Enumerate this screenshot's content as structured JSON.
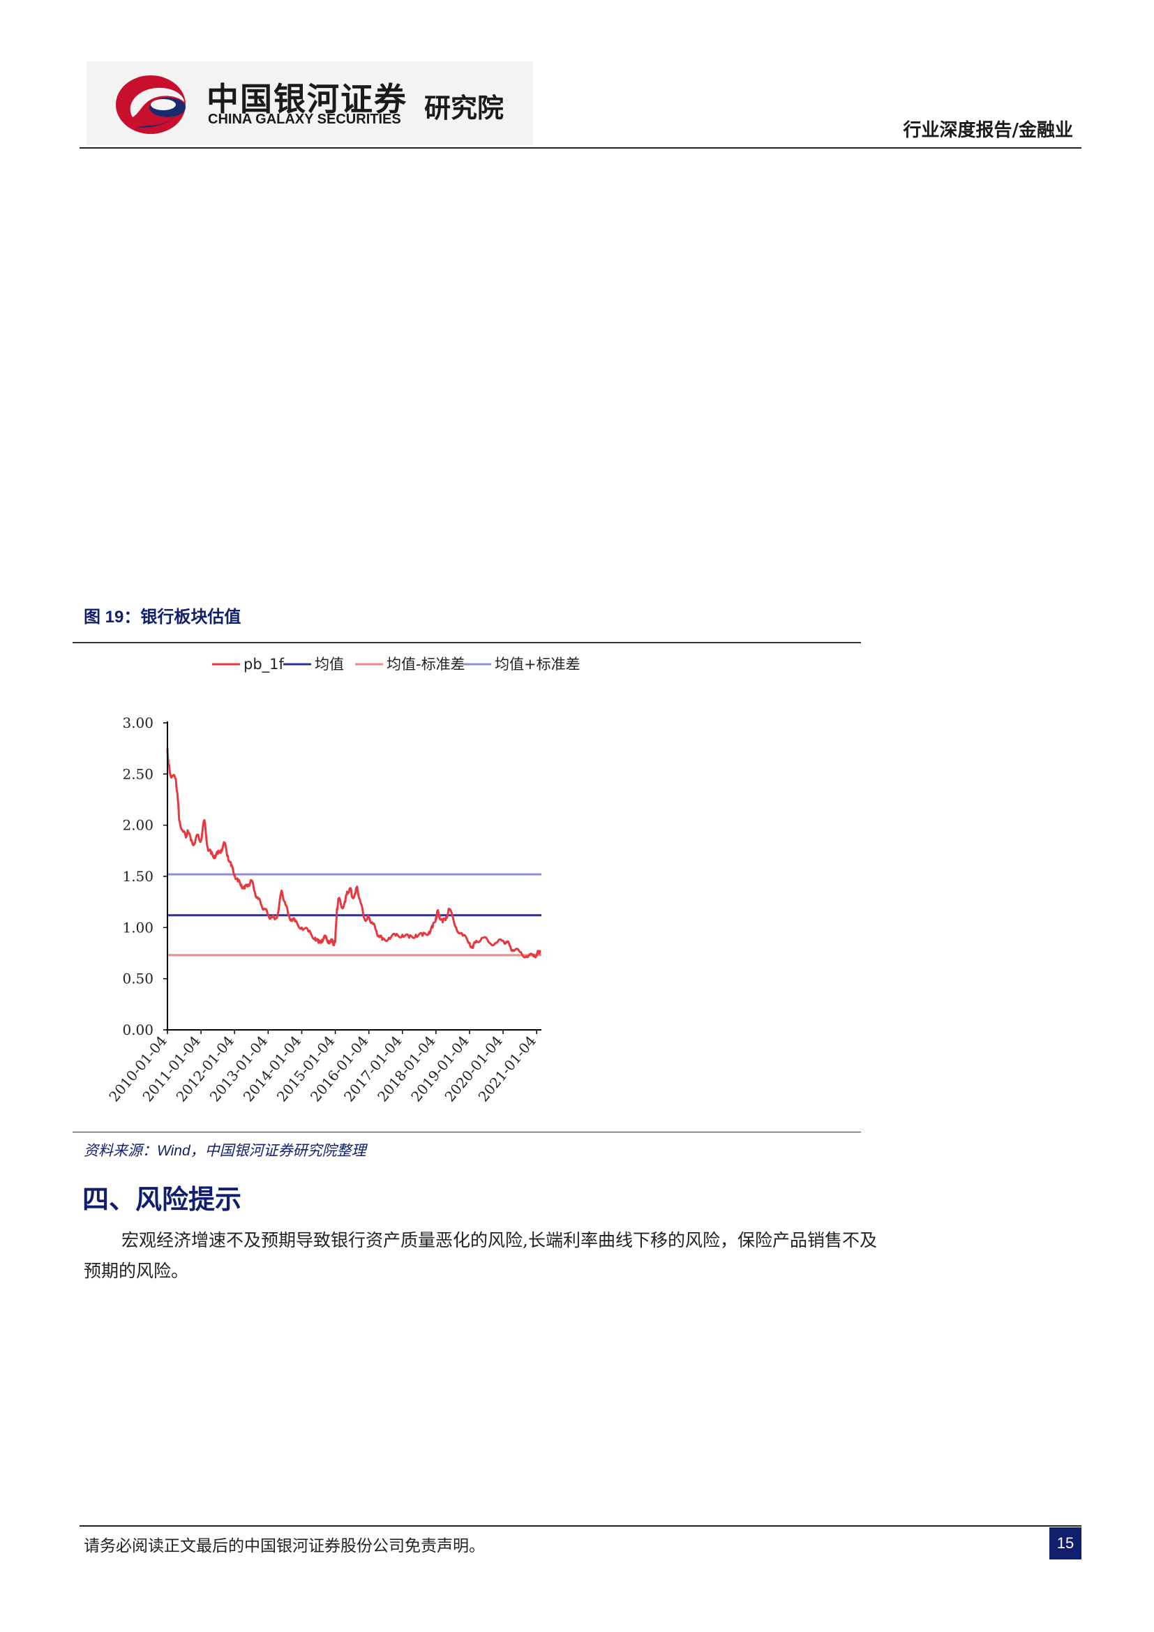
{
  "header": {
    "logo_cn": "中国银河证券",
    "logo_en": "CHINA GALAXY SECURITIES",
    "logo_institute": "研究院",
    "report_type": "行业深度报告/金融业"
  },
  "figure": {
    "title": "图 19：银行板块估值",
    "source": "资料来源：Wind，中国银河证券研究院整理"
  },
  "chart_data": {
    "type": "line",
    "x_ticks": [
      "2010-01-04",
      "2011-01-04",
      "2012-01-04",
      "2013-01-04",
      "2014-01-04",
      "2015-01-04",
      "2016-01-04",
      "2017-01-04",
      "2018-01-04",
      "2019-01-04",
      "2020-01-04",
      "2021-01-04"
    ],
    "y_ticks": [
      "0.00",
      "0.50",
      "1.00",
      "1.50",
      "2.00",
      "2.50",
      "3.00"
    ],
    "ylim": [
      0,
      3
    ],
    "xlim": [
      2010.0,
      2021.1
    ],
    "legend_position": "top",
    "series": [
      {
        "name": "pb_1f",
        "color": "#e8383d",
        "x": [
          2010.0,
          2010.03,
          2010.08,
          2010.15,
          2010.25,
          2010.3,
          2010.35,
          2010.45,
          2010.55,
          2010.6,
          2010.7,
          2010.8,
          2010.9,
          2011.0,
          2011.1,
          2011.2,
          2011.3,
          2011.4,
          2011.5,
          2011.6,
          2011.7,
          2011.8,
          2011.9,
          2012.0,
          2012.1,
          2012.2,
          2012.3,
          2012.4,
          2012.5,
          2012.6,
          2012.7,
          2012.8,
          2012.9,
          2013.0,
          2013.1,
          2013.2,
          2013.3,
          2013.4,
          2013.5,
          2013.6,
          2013.7,
          2013.8,
          2014.0,
          2014.2,
          2014.4,
          2014.5,
          2014.6,
          2014.7,
          2014.8,
          2014.9,
          2014.95,
          2015.0,
          2015.05,
          2015.1,
          2015.2,
          2015.3,
          2015.35,
          2015.45,
          2015.5,
          2015.6,
          2015.65,
          2015.75,
          2015.85,
          2015.95,
          2016.0,
          2016.1,
          2016.2,
          2016.3,
          2016.4,
          2016.6,
          2016.8,
          2017.0,
          2017.2,
          2017.4,
          2017.6,
          2017.8,
          2017.9,
          2018.0,
          2018.05,
          2018.1,
          2018.2,
          2018.3,
          2018.4,
          2018.6,
          2018.8,
          2019.0,
          2019.1,
          2019.2,
          2019.4,
          2019.6,
          2019.8,
          2020.0,
          2020.1,
          2020.2,
          2020.3,
          2020.5,
          2020.7,
          2020.9,
          2021.0,
          2021.05,
          2021.1
        ],
        "y": [
          2.75,
          2.6,
          2.5,
          2.48,
          2.45,
          2.3,
          2.05,
          1.95,
          1.88,
          1.95,
          1.85,
          1.82,
          1.9,
          1.85,
          2.05,
          1.78,
          1.72,
          1.7,
          1.72,
          1.76,
          1.82,
          1.7,
          1.6,
          1.52,
          1.45,
          1.42,
          1.38,
          1.42,
          1.46,
          1.35,
          1.28,
          1.22,
          1.18,
          1.12,
          1.1,
          1.08,
          1.15,
          1.36,
          1.25,
          1.12,
          1.08,
          1.06,
          1.0,
          0.96,
          0.9,
          0.85,
          0.88,
          0.9,
          0.87,
          0.86,
          0.85,
          0.86,
          1.18,
          1.28,
          1.2,
          1.25,
          1.35,
          1.38,
          1.3,
          1.33,
          1.4,
          1.25,
          1.1,
          1.08,
          1.1,
          1.05,
          0.98,
          0.92,
          0.88,
          0.9,
          0.92,
          0.93,
          0.9,
          0.93,
          0.92,
          0.96,
          1.0,
          1.1,
          1.15,
          1.12,
          1.05,
          1.1,
          1.18,
          1.0,
          0.92,
          0.85,
          0.8,
          0.87,
          0.9,
          0.85,
          0.85,
          0.87,
          0.86,
          0.82,
          0.78,
          0.76,
          0.72,
          0.72,
          0.74,
          0.75,
          0.78
        ]
      },
      {
        "name": "均值",
        "color": "#2e3192",
        "value": 1.12
      },
      {
        "name": "均值-标准差",
        "color": "#f08a8a",
        "value": 0.73
      },
      {
        "name": "均值+标准差",
        "color": "#8c8fd4",
        "value": 1.52
      }
    ]
  },
  "section": {
    "heading": "四、风险提示",
    "body": "宏观经济增速不及预期导致银行资产质量恶化的风险,长端利率曲线下移的风险，保险产品销售不及预期的风险。"
  },
  "footer": {
    "disclaimer": "请务必阅读正文最后的中国银河证券股份公司免责声明。",
    "page_number": "15"
  }
}
